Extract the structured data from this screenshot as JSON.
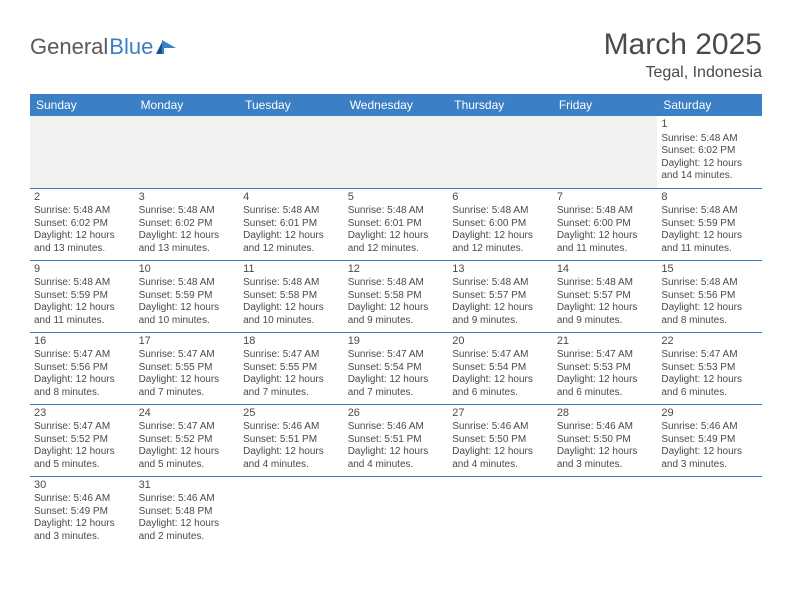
{
  "brand": {
    "part1": "General",
    "part2": "Blue"
  },
  "title": "March 2025",
  "location": "Tegal, Indonesia",
  "colors": {
    "header_bg": "#3b7fc4",
    "header_text": "#ffffff",
    "cell_border": "#3b7fc4",
    "text": "#4a4a4a",
    "empty_bg": "#f1f1f1",
    "page_bg": "#ffffff"
  },
  "typography": {
    "title_fontsize": 30,
    "location_fontsize": 16,
    "weekday_fontsize": 12,
    "daynum_fontsize": 11,
    "detail_fontsize": 10
  },
  "weekdays": [
    "Sunday",
    "Monday",
    "Tuesday",
    "Wednesday",
    "Thursday",
    "Friday",
    "Saturday"
  ],
  "labels": {
    "sunrise": "Sunrise:",
    "sunset": "Sunset:",
    "daylight": "Daylight:"
  },
  "weeks": [
    [
      null,
      null,
      null,
      null,
      null,
      null,
      {
        "d": "1",
        "sunrise": "5:48 AM",
        "sunset": "6:02 PM",
        "daylight": "12 hours and 14 minutes."
      }
    ],
    [
      {
        "d": "2",
        "sunrise": "5:48 AM",
        "sunset": "6:02 PM",
        "daylight": "12 hours and 13 minutes."
      },
      {
        "d": "3",
        "sunrise": "5:48 AM",
        "sunset": "6:02 PM",
        "daylight": "12 hours and 13 minutes."
      },
      {
        "d": "4",
        "sunrise": "5:48 AM",
        "sunset": "6:01 PM",
        "daylight": "12 hours and 12 minutes."
      },
      {
        "d": "5",
        "sunrise": "5:48 AM",
        "sunset": "6:01 PM",
        "daylight": "12 hours and 12 minutes."
      },
      {
        "d": "6",
        "sunrise": "5:48 AM",
        "sunset": "6:00 PM",
        "daylight": "12 hours and 12 minutes."
      },
      {
        "d": "7",
        "sunrise": "5:48 AM",
        "sunset": "6:00 PM",
        "daylight": "12 hours and 11 minutes."
      },
      {
        "d": "8",
        "sunrise": "5:48 AM",
        "sunset": "5:59 PM",
        "daylight": "12 hours and 11 minutes."
      }
    ],
    [
      {
        "d": "9",
        "sunrise": "5:48 AM",
        "sunset": "5:59 PM",
        "daylight": "12 hours and 11 minutes."
      },
      {
        "d": "10",
        "sunrise": "5:48 AM",
        "sunset": "5:59 PM",
        "daylight": "12 hours and 10 minutes."
      },
      {
        "d": "11",
        "sunrise": "5:48 AM",
        "sunset": "5:58 PM",
        "daylight": "12 hours and 10 minutes."
      },
      {
        "d": "12",
        "sunrise": "5:48 AM",
        "sunset": "5:58 PM",
        "daylight": "12 hours and 9 minutes."
      },
      {
        "d": "13",
        "sunrise": "5:48 AM",
        "sunset": "5:57 PM",
        "daylight": "12 hours and 9 minutes."
      },
      {
        "d": "14",
        "sunrise": "5:48 AM",
        "sunset": "5:57 PM",
        "daylight": "12 hours and 9 minutes."
      },
      {
        "d": "15",
        "sunrise": "5:48 AM",
        "sunset": "5:56 PM",
        "daylight": "12 hours and 8 minutes."
      }
    ],
    [
      {
        "d": "16",
        "sunrise": "5:47 AM",
        "sunset": "5:56 PM",
        "daylight": "12 hours and 8 minutes."
      },
      {
        "d": "17",
        "sunrise": "5:47 AM",
        "sunset": "5:55 PM",
        "daylight": "12 hours and 7 minutes."
      },
      {
        "d": "18",
        "sunrise": "5:47 AM",
        "sunset": "5:55 PM",
        "daylight": "12 hours and 7 minutes."
      },
      {
        "d": "19",
        "sunrise": "5:47 AM",
        "sunset": "5:54 PM",
        "daylight": "12 hours and 7 minutes."
      },
      {
        "d": "20",
        "sunrise": "5:47 AM",
        "sunset": "5:54 PM",
        "daylight": "12 hours and 6 minutes."
      },
      {
        "d": "21",
        "sunrise": "5:47 AM",
        "sunset": "5:53 PM",
        "daylight": "12 hours and 6 minutes."
      },
      {
        "d": "22",
        "sunrise": "5:47 AM",
        "sunset": "5:53 PM",
        "daylight": "12 hours and 6 minutes."
      }
    ],
    [
      {
        "d": "23",
        "sunrise": "5:47 AM",
        "sunset": "5:52 PM",
        "daylight": "12 hours and 5 minutes."
      },
      {
        "d": "24",
        "sunrise": "5:47 AM",
        "sunset": "5:52 PM",
        "daylight": "12 hours and 5 minutes."
      },
      {
        "d": "25",
        "sunrise": "5:46 AM",
        "sunset": "5:51 PM",
        "daylight": "12 hours and 4 minutes."
      },
      {
        "d": "26",
        "sunrise": "5:46 AM",
        "sunset": "5:51 PM",
        "daylight": "12 hours and 4 minutes."
      },
      {
        "d": "27",
        "sunrise": "5:46 AM",
        "sunset": "5:50 PM",
        "daylight": "12 hours and 4 minutes."
      },
      {
        "d": "28",
        "sunrise": "5:46 AM",
        "sunset": "5:50 PM",
        "daylight": "12 hours and 3 minutes."
      },
      {
        "d": "29",
        "sunrise": "5:46 AM",
        "sunset": "5:49 PM",
        "daylight": "12 hours and 3 minutes."
      }
    ],
    [
      {
        "d": "30",
        "sunrise": "5:46 AM",
        "sunset": "5:49 PM",
        "daylight": "12 hours and 3 minutes."
      },
      {
        "d": "31",
        "sunrise": "5:46 AM",
        "sunset": "5:48 PM",
        "daylight": "12 hours and 2 minutes."
      },
      null,
      null,
      null,
      null,
      null
    ]
  ]
}
